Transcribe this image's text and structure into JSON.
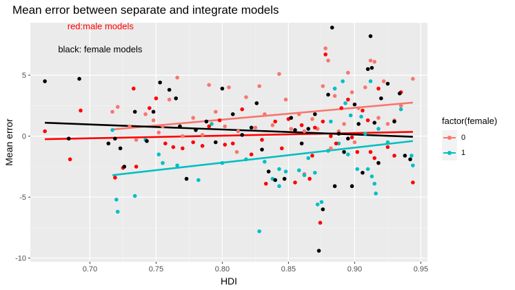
{
  "chart_data": {
    "type": "scatter",
    "title": "Mean error between separate and integrate models",
    "xlabel": "HDI",
    "ylabel": "Mean error",
    "xlim": [
      0.655,
      0.955
    ],
    "ylim": [
      -10.3,
      9.3
    ],
    "x_ticks": [
      0.7,
      0.75,
      0.8,
      0.85,
      0.9,
      0.95
    ],
    "x_tick_labels": [
      "0.70",
      "0.75",
      "0.80",
      "0.85",
      "0.90",
      "0.95"
    ],
    "y_ticks": [
      -10,
      -5,
      0,
      5
    ],
    "y_tick_labels": [
      "-10",
      "-5",
      "0",
      "5"
    ],
    "grid": true,
    "legend": {
      "title": "factor(female)",
      "placement": "right",
      "entries": [
        {
          "label": "0",
          "color": "#F8766D"
        },
        {
          "label": "1",
          "color": "#00BFC4"
        }
      ]
    },
    "annotations": [
      {
        "text": "red:male models",
        "color": "#ff0000",
        "x": 0.683,
        "y": 9.0
      },
      {
        "text": "black: female models",
        "color": "#000000",
        "x": 0.676,
        "y": 7.1
      }
    ],
    "series": [
      {
        "name": "0",
        "color": "#F8766D",
        "points": [
          [
            0.717,
            2.0
          ],
          [
            0.721,
            2.4
          ],
          [
            0.73,
            0.8
          ],
          [
            0.735,
            -0.3
          ],
          [
            0.742,
            1.8
          ],
          [
            0.748,
            1.3
          ],
          [
            0.752,
            0.3
          ],
          [
            0.755,
            0.8
          ],
          [
            0.76,
            3.0
          ],
          [
            0.766,
            4.8
          ],
          [
            0.77,
            0.0
          ],
          [
            0.778,
            1.5
          ],
          [
            0.785,
            0.1
          ],
          [
            0.79,
            4.2
          ],
          [
            0.795,
            2.0
          ],
          [
            0.802,
            0.8
          ],
          [
            0.805,
            4.0
          ],
          [
            0.812,
            0.4
          ],
          [
            0.818,
            3.2
          ],
          [
            0.825,
            0.7
          ],
          [
            0.828,
            4.1
          ],
          [
            0.832,
            1.8
          ],
          [
            0.838,
            0.9
          ],
          [
            0.843,
            5.1
          ],
          [
            0.848,
            3.0
          ],
          [
            0.852,
            0.6
          ],
          [
            0.858,
            1.8
          ],
          [
            0.862,
            0.4
          ],
          [
            0.868,
            1.4
          ],
          [
            0.872,
            0.6
          ],
          [
            0.876,
            4.1
          ],
          [
            0.878,
            7.2
          ],
          [
            0.88,
            6.2
          ],
          [
            0.882,
            -1.0
          ],
          [
            0.885,
            3.3
          ],
          [
            0.888,
            0.4
          ],
          [
            0.892,
            1.0
          ],
          [
            0.895,
            5.2
          ],
          [
            0.898,
            3.6
          ],
          [
            0.903,
            2.3
          ],
          [
            0.908,
            4.0
          ],
          [
            0.912,
            6.2
          ],
          [
            0.915,
            6.1
          ],
          [
            0.918,
            1.5
          ],
          [
            0.922,
            4.5
          ],
          [
            0.925,
            1.0
          ],
          [
            0.93,
            1.3
          ],
          [
            0.935,
            2.5
          ],
          [
            0.944,
            4.7
          ],
          [
            0.9,
            -0.5
          ],
          [
            0.862,
            -3.1
          ],
          [
            0.811,
            -1.3
          ]
        ],
        "trend": [
          [
            0.717,
            0.55
          ],
          [
            0.944,
            2.75
          ]
        ]
      },
      {
        "name": "1",
        "color": "#00BFC4",
        "points": [
          [
            0.717,
            0.5
          ],
          [
            0.72,
            -5.2
          ],
          [
            0.721,
            -6.2
          ],
          [
            0.734,
            -4.9
          ],
          [
            0.742,
            -0.3
          ],
          [
            0.752,
            -1.5
          ],
          [
            0.755,
            -2.2
          ],
          [
            0.766,
            -2.4
          ],
          [
            0.782,
            -3.6
          ],
          [
            0.792,
            1.0
          ],
          [
            0.8,
            -2.2
          ],
          [
            0.818,
            -1.9
          ],
          [
            0.828,
            -7.8
          ],
          [
            0.832,
            -2.1
          ],
          [
            0.838,
            -3.5
          ],
          [
            0.84,
            -3.6
          ],
          [
            0.843,
            -2.7
          ],
          [
            0.843,
            -4.1
          ],
          [
            0.848,
            -2.9
          ],
          [
            0.858,
            -2.8
          ],
          [
            0.862,
            -3.2
          ],
          [
            0.865,
            -1.8
          ],
          [
            0.87,
            -3.0
          ],
          [
            0.872,
            -5.6
          ],
          [
            0.875,
            -5.4
          ],
          [
            0.88,
            -1.2
          ],
          [
            0.882,
            1.2
          ],
          [
            0.885,
            3.9
          ],
          [
            0.888,
            -0.6
          ],
          [
            0.891,
            4.5
          ],
          [
            0.893,
            2.7
          ],
          [
            0.895,
            -1.5
          ],
          [
            0.897,
            1.7
          ],
          [
            0.902,
            -2.7
          ],
          [
            0.905,
            1.6
          ],
          [
            0.908,
            0.2
          ],
          [
            0.91,
            -2.7
          ],
          [
            0.912,
            4.5
          ],
          [
            0.913,
            -3.3
          ],
          [
            0.915,
            -3.9
          ],
          [
            0.916,
            -4.7
          ],
          [
            0.918,
            0.6
          ],
          [
            0.925,
            -0.5
          ],
          [
            0.935,
            2.2
          ],
          [
            0.943,
            -1.6
          ],
          [
            0.944,
            -2.4
          ]
        ],
        "trend": [
          [
            0.717,
            -3.2
          ],
          [
            0.944,
            -0.4
          ]
        ]
      },
      {
        "name": "male models",
        "color": "#ff0000",
        "points": [
          [
            0.666,
            0.4
          ],
          [
            0.685,
            -1.9
          ],
          [
            0.693,
            2.1
          ],
          [
            0.719,
            -3.4
          ],
          [
            0.725,
            -2.6
          ],
          [
            0.733,
            3.9
          ],
          [
            0.735,
            -2.5
          ],
          [
            0.745,
            2.3
          ],
          [
            0.75,
            3.1
          ],
          [
            0.757,
            -0.6
          ],
          [
            0.763,
            -0.9
          ],
          [
            0.77,
            -1.0
          ],
          [
            0.778,
            -0.5
          ],
          [
            0.785,
            -0.8
          ],
          [
            0.79,
            0.8
          ],
          [
            0.798,
            1.3
          ],
          [
            0.802,
            -0.7
          ],
          [
            0.808,
            -0.6
          ],
          [
            0.815,
            2.2
          ],
          [
            0.822,
            -1.5
          ],
          [
            0.83,
            -0.3
          ],
          [
            0.833,
            -3.9
          ],
          [
            0.84,
            1.2
          ],
          [
            0.845,
            -1.0
          ],
          [
            0.85,
            1.4
          ],
          [
            0.855,
            -3.8
          ],
          [
            0.86,
            0.9
          ],
          [
            0.866,
            -3.5
          ],
          [
            0.868,
            -1.6
          ],
          [
            0.87,
            0.7
          ],
          [
            0.874,
            -7.1
          ],
          [
            0.876,
            1.2
          ],
          [
            0.878,
            6.7
          ],
          [
            0.882,
            0.0
          ],
          [
            0.886,
            -0.6
          ],
          [
            0.89,
            2.3
          ],
          [
            0.895,
            3.0
          ],
          [
            0.898,
            -0.1
          ],
          [
            0.902,
            -1.3
          ],
          [
            0.906,
            2.1
          ],
          [
            0.91,
            1.3
          ],
          [
            0.912,
            -1.3
          ],
          [
            0.915,
            -1.8
          ],
          [
            0.918,
            3.9
          ],
          [
            0.925,
            -0.9
          ],
          [
            0.93,
            -1.6
          ],
          [
            0.935,
            3.6
          ],
          [
            0.944,
            -3.8
          ]
        ],
        "trend": [
          [
            0.666,
            -0.25
          ],
          [
            0.944,
            0.35
          ]
        ]
      },
      {
        "name": "female models",
        "color": "#000000",
        "points": [
          [
            0.666,
            4.5
          ],
          [
            0.684,
            -0.2
          ],
          [
            0.692,
            4.7
          ],
          [
            0.714,
            -0.6
          ],
          [
            0.719,
            -0.2
          ],
          [
            0.723,
            -1.0
          ],
          [
            0.726,
            -2.5
          ],
          [
            0.734,
            2.0
          ],
          [
            0.743,
            -0.4
          ],
          [
            0.748,
            2.0
          ],
          [
            0.753,
            4.4
          ],
          [
            0.76,
            3.8
          ],
          [
            0.765,
            3.1
          ],
          [
            0.768,
            0.8
          ],
          [
            0.773,
            -3.5
          ],
          [
            0.78,
            0.5
          ],
          [
            0.788,
            1.2
          ],
          [
            0.795,
            -0.5
          ],
          [
            0.8,
            3.9
          ],
          [
            0.808,
            1.8
          ],
          [
            0.815,
            0.1
          ],
          [
            0.822,
            0.7
          ],
          [
            0.826,
            2.7
          ],
          [
            0.83,
            -1.1
          ],
          [
            0.835,
            -2.9
          ],
          [
            0.84,
            -3.6
          ],
          [
            0.847,
            -3.5
          ],
          [
            0.852,
            1.5
          ],
          [
            0.855,
            0.5
          ],
          [
            0.86,
            -0.6
          ],
          [
            0.865,
            0.6
          ],
          [
            0.87,
            1.8
          ],
          [
            0.873,
            -9.4
          ],
          [
            0.876,
            -6.0
          ],
          [
            0.88,
            3.4
          ],
          [
            0.883,
            8.9
          ],
          [
            0.885,
            -4.1
          ],
          [
            0.888,
            0.2
          ],
          [
            0.892,
            -1.3
          ],
          [
            0.895,
            -0.2
          ],
          [
            0.898,
            -4.1
          ],
          [
            0.9,
            2.6
          ],
          [
            0.903,
            1.0
          ],
          [
            0.906,
            -3.0
          ],
          [
            0.91,
            5.5
          ],
          [
            0.912,
            8.2
          ],
          [
            0.913,
            5.6
          ],
          [
            0.915,
            1.1
          ],
          [
            0.918,
            -2.2
          ],
          [
            0.92,
            3.1
          ],
          [
            0.925,
            4.3
          ],
          [
            0.93,
            1.2
          ],
          [
            0.934,
            3.5
          ],
          [
            0.938,
            -1.6
          ],
          [
            0.942,
            -1.9
          ]
        ],
        "trend": [
          [
            0.666,
            1.1
          ],
          [
            0.944,
            -0.05
          ]
        ]
      }
    ]
  }
}
